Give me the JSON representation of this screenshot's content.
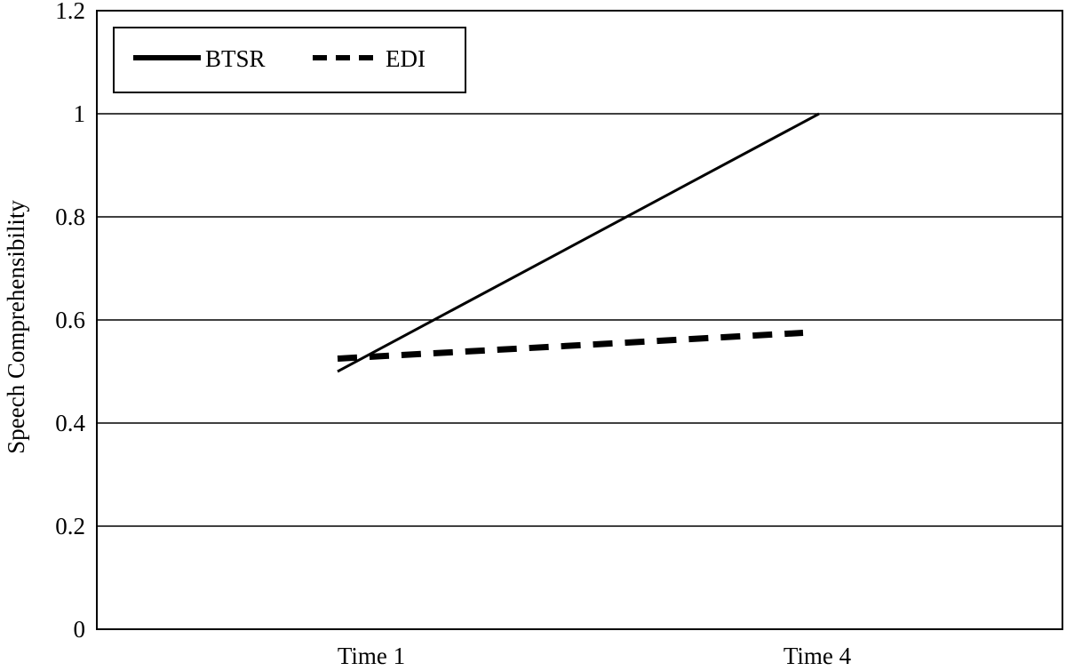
{
  "chart_data": {
    "type": "line",
    "title": "",
    "xlabel": "",
    "ylabel": "Speech Comprehensibility",
    "categories": [
      "Time 1",
      "Time 4"
    ],
    "series": [
      {
        "name": "BTSR",
        "values": [
          0.5,
          1.0
        ],
        "style": "solid"
      },
      {
        "name": "EDI",
        "values": [
          0.525,
          0.575
        ],
        "style": "dashed"
      }
    ],
    "yticks": [
      "0",
      "0.2",
      "0.4",
      "0.6",
      "0.8",
      "1",
      "1.2"
    ],
    "ylim": [
      0,
      1.2
    ],
    "grid": true,
    "legend": "top-left",
    "colors": {
      "line": "#000000",
      "grid": "#000000",
      "background": "#ffffff"
    }
  }
}
